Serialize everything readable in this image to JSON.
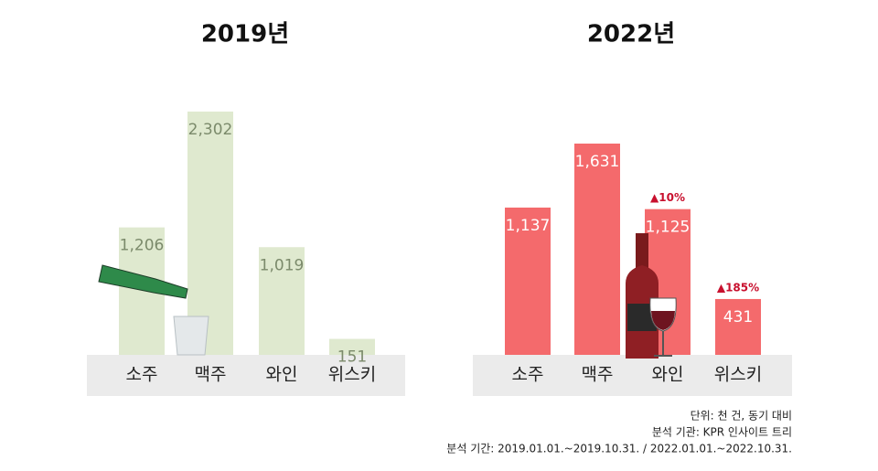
{
  "chart_data": [
    {
      "type": "bar",
      "title": "2019년",
      "categories": [
        "소주",
        "맥주",
        "와인",
        "위스키"
      ],
      "values": [
        1206,
        2302,
        1019,
        151
      ],
      "value_labels": [
        "1,206",
        "2,302",
        "1,019",
        "151"
      ],
      "color": "#dfe9cf"
    },
    {
      "type": "bar",
      "title": "2022년",
      "categories": [
        "소주",
        "맥주",
        "와인",
        "위스키"
      ],
      "values": [
        1137,
        1631,
        1125,
        431
      ],
      "value_labels": [
        "1,137",
        "1,631",
        "1,125",
        "431"
      ],
      "annotations": [
        null,
        null,
        "▲10%",
        "▲185%"
      ],
      "color": "#f46a6c"
    }
  ],
  "footnotes": [
    "단위: 천 건, 동기 대비",
    "분석 기관: KPR 인사이트 트리",
    "분석 기간: 2019.01.01.~2019.10.31. / 2022.01.01.~2022.10.31."
  ]
}
